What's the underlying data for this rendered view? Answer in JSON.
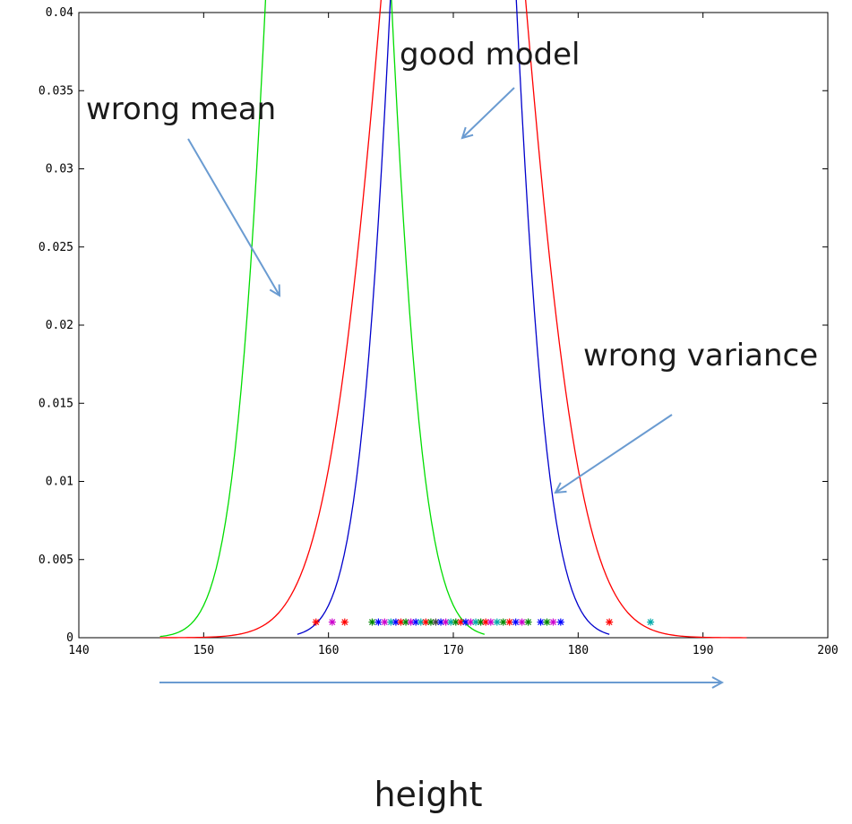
{
  "chart_data": {
    "type": "line",
    "title": "",
    "xlabel": "height",
    "ylabel": "",
    "xlim": [
      140,
      200
    ],
    "ylim": [
      0,
      0.04
    ],
    "x_ticks": [
      140,
      150,
      160,
      170,
      180,
      190,
      200
    ],
    "x_tick_labels": [
      "140",
      "150",
      "160",
      "170",
      "180",
      "190",
      "200"
    ],
    "y_ticks": [
      0,
      0.005,
      0.01,
      0.015,
      0.02,
      0.025,
      0.03,
      0.035,
      0.04
    ],
    "y_tick_labels": [
      "0",
      "0.005",
      "0.01",
      "0.015",
      "0.02",
      "0.025",
      "0.03",
      "0.035",
      "0.04"
    ],
    "grid": false,
    "series": [
      {
        "name": "",
        "color": "#00dd00",
        "distribution": "normal",
        "mean": 160,
        "sd": 12.5,
        "scale": 1,
        "x_range": [
          146.5,
          172.5
        ]
      },
      {
        "name": "",
        "color": "#0000cc",
        "distribution": "normal",
        "mean": 170,
        "sd": 12.5,
        "scale": 1,
        "x_range": [
          157.5,
          182.5
        ]
      },
      {
        "name": "",
        "color": "#ff0000",
        "distribution": "normal",
        "mean": 170,
        "sd": 25,
        "scale": 1,
        "x_range": [
          146.5,
          193.5
        ]
      }
    ],
    "samples": {
      "y": 0.001,
      "points": [
        {
          "x": 159.0,
          "color": "#ff0000"
        },
        {
          "x": 160.3,
          "color": "#cc00cc"
        },
        {
          "x": 161.3,
          "color": "#ff0000"
        },
        {
          "x": 163.5,
          "color": "#008800"
        },
        {
          "x": 164.0,
          "color": "#0000ff"
        },
        {
          "x": 164.5,
          "color": "#cc00cc"
        },
        {
          "x": 165.0,
          "color": "#00aaaa"
        },
        {
          "x": 165.4,
          "color": "#0000ff"
        },
        {
          "x": 165.8,
          "color": "#ff0000"
        },
        {
          "x": 166.2,
          "color": "#008800"
        },
        {
          "x": 166.6,
          "color": "#cc00cc"
        },
        {
          "x": 167.0,
          "color": "#0000ff"
        },
        {
          "x": 167.4,
          "color": "#00aaaa"
        },
        {
          "x": 167.8,
          "color": "#ff0000"
        },
        {
          "x": 168.2,
          "color": "#008800"
        },
        {
          "x": 168.6,
          "color": "#444444"
        },
        {
          "x": 169.0,
          "color": "#0000ff"
        },
        {
          "x": 169.4,
          "color": "#cc00cc"
        },
        {
          "x": 169.8,
          "color": "#00aaaa"
        },
        {
          "x": 170.2,
          "color": "#008800"
        },
        {
          "x": 170.6,
          "color": "#ff0000"
        },
        {
          "x": 171.0,
          "color": "#0000ff"
        },
        {
          "x": 171.4,
          "color": "#cc00cc"
        },
        {
          "x": 171.8,
          "color": "#00aaaa"
        },
        {
          "x": 172.2,
          "color": "#008800"
        },
        {
          "x": 172.6,
          "color": "#ff0000"
        },
        {
          "x": 173.0,
          "color": "#cc00cc"
        },
        {
          "x": 173.5,
          "color": "#00aaaa"
        },
        {
          "x": 174.0,
          "color": "#008800"
        },
        {
          "x": 174.5,
          "color": "#ff0000"
        },
        {
          "x": 175.0,
          "color": "#0000ff"
        },
        {
          "x": 175.5,
          "color": "#cc00cc"
        },
        {
          "x": 176.0,
          "color": "#008800"
        },
        {
          "x": 177.0,
          "color": "#0000ff"
        },
        {
          "x": 177.5,
          "color": "#008800"
        },
        {
          "x": 178.0,
          "color": "#cc00cc"
        },
        {
          "x": 178.6,
          "color": "#0000ff"
        },
        {
          "x": 182.5,
          "color": "#ff0000"
        },
        {
          "x": 185.8,
          "color": "#00aaaa"
        }
      ]
    },
    "annotations": [
      {
        "text": "wrong mean",
        "color": "#1a1a1a",
        "arrow_color": "#6a9bd1",
        "points_to": [
          156.5,
          0.022
        ]
      },
      {
        "text": "good model",
        "color": "#1a1a1a",
        "arrow_color": "#6a9bd1",
        "points_to": [
          170.5,
          0.032
        ]
      },
      {
        "text": "wrong variance",
        "color": "#1a1a1a",
        "arrow_color": "#6a9bd1",
        "points_to": [
          177.5,
          0.009
        ]
      }
    ]
  }
}
